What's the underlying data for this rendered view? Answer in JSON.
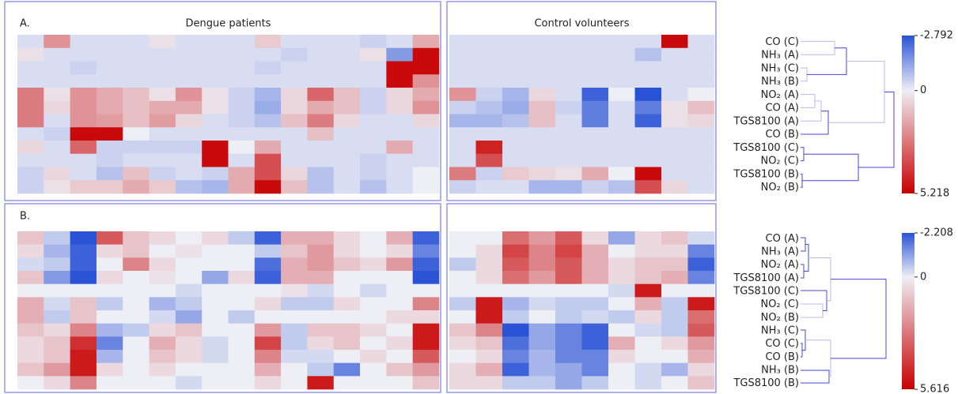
{
  "chart_data": [
    {
      "type": "heatmap",
      "label": "A.",
      "groups": [
        {
          "title": "Dengue patients",
          "values": [
            [
              -0.3,
              2,
              -0.3,
              -0.3,
              -0.3,
              0.3,
              -0.3,
              -0.3,
              -0.3,
              0.8,
              -0.3,
              -0.3,
              -0.3,
              -0.5,
              -0.3,
              1.5
            ],
            [
              0.3,
              -0.3,
              -0.3,
              -0.3,
              -0.3,
              -0.3,
              -0.3,
              -0.3,
              -0.3,
              -0.3,
              -0.5,
              -0.3,
              -0.3,
              0.3,
              -1.5,
              5
            ],
            [
              -0.3,
              -0.3,
              -0.5,
              -0.3,
              -0.3,
              -0.3,
              -0.3,
              -0.3,
              -0.3,
              -0.5,
              -0.3,
              -0.3,
              -0.3,
              -0.3,
              5,
              5
            ],
            [
              -0.3,
              -0.3,
              -0.3,
              -0.3,
              -0.3,
              -0.3,
              -0.3,
              -0.3,
              -0.3,
              -0.3,
              -0.3,
              -0.3,
              -0.3,
              -0.3,
              5,
              2
            ],
            [
              2.5,
              0.3,
              2,
              1.5,
              1,
              0.3,
              2,
              0.3,
              -0.5,
              -1,
              0.5,
              3,
              1,
              -0.5,
              0.5,
              1.5
            ],
            [
              2.5,
              0.5,
              2,
              1.5,
              1,
              1.5,
              1.5,
              0.3,
              -0.5,
              -1.2,
              0.5,
              1.5,
              1,
              -0.5,
              0.5,
              2
            ],
            [
              2.5,
              -0.3,
              2,
              1.8,
              1,
              1.8,
              0.5,
              -0.3,
              -0.5,
              -0.8,
              1,
              2.5,
              0.5,
              -0.3,
              -0.3,
              0.5
            ],
            [
              -0.3,
              -0.5,
              5,
              5,
              0,
              -0.3,
              -0.3,
              -0.3,
              -0.3,
              -0.3,
              -0.3,
              1,
              -0.3,
              -0.3,
              -0.3,
              -0.3
            ],
            [
              0.5,
              -0.3,
              3,
              -0.5,
              -0.5,
              -0.5,
              -0.5,
              5,
              0,
              1.5,
              -0.3,
              -0.3,
              -0.3,
              -0.3,
              1.5,
              -0.3
            ],
            [
              -0.3,
              -0.3,
              -0.3,
              -0.5,
              -0.3,
              -0.3,
              -0.3,
              5,
              -0.3,
              3.5,
              -0.3,
              -0.3,
              -0.3,
              -0.5,
              -0.3,
              -0.3
            ],
            [
              -0.5,
              0.5,
              -0.3,
              -0.8,
              1,
              -0.5,
              -0.3,
              -0.5,
              1.5,
              3.5,
              0.5,
              -0.8,
              -0.3,
              -0.5,
              -0.3,
              0
            ],
            [
              -0.5,
              0.3,
              0.8,
              0.8,
              1.5,
              0.8,
              -0.8,
              -1,
              1.5,
              5,
              1,
              -0.8,
              -0.3,
              -0.8,
              -0.3,
              0
            ]
          ]
        },
        {
          "title": "Control volunteers",
          "values": [
            [
              -0.3,
              -0.3,
              -0.3,
              -0.3,
              -0.3,
              -0.3,
              -0.3,
              -0.3,
              5,
              -0.3
            ],
            [
              -0.3,
              -0.3,
              -0.3,
              -0.3,
              -0.3,
              -0.3,
              -0.3,
              -0.8,
              -0.3,
              -0.3
            ],
            [
              -0.3,
              -0.3,
              -0.3,
              -0.3,
              -0.3,
              -0.3,
              -0.3,
              -0.3,
              -0.3,
              -0.3
            ],
            [
              -0.3,
              -0.3,
              -0.3,
              -0.3,
              -0.3,
              -0.3,
              -0.3,
              -0.3,
              -0.3,
              -0.3
            ],
            [
              2,
              -0.5,
              -1,
              0.5,
              -0.3,
              -2.5,
              0,
              -2.8,
              -0.3,
              0
            ],
            [
              -0.5,
              -0.8,
              -1.2,
              1,
              -0.5,
              -2,
              -0.3,
              -2,
              0.3,
              1
            ],
            [
              -1,
              -1,
              -0.8,
              1,
              -0.3,
              -2,
              -0.3,
              -2.5,
              0.3,
              0.5
            ],
            [
              -0.3,
              -0.3,
              -0.3,
              -0.3,
              -0.3,
              -0.3,
              -0.3,
              -0.3,
              -0.3,
              -0.3
            ],
            [
              -0.3,
              4.5,
              -0.3,
              -0.3,
              -0.3,
              -0.3,
              -0.3,
              -0.3,
              -0.3,
              -0.3
            ],
            [
              -0.3,
              3.5,
              -0.3,
              -0.3,
              -0.3,
              -0.3,
              -0.3,
              -0.3,
              -0.3,
              -0.3
            ],
            [
              2.5,
              -0.5,
              0.8,
              0.5,
              0.3,
              1.5,
              0,
              5,
              -0.3,
              -0.3
            ],
            [
              -0.5,
              -0.3,
              -0.3,
              -1,
              -1,
              -0.5,
              -0.8,
              3.5,
              0.5,
              -0.3
            ]
          ]
        }
      ],
      "row_labels": [
        "CO (C)",
        "NH₃ (A)",
        "NH₃ (C)",
        "NH₃ (B)",
        "NO₂ (A)",
        "CO (A)",
        "TGS8100 (A)",
        "CO (B)",
        "TGS8100 (C)",
        "NO₂ (C)",
        "TGS8100 (B)",
        "NO₂ (B)"
      ],
      "clim": [
        -2.792,
        5.218
      ],
      "cticks": [
        -2.792,
        0,
        5.218
      ]
    },
    {
      "type": "heatmap",
      "label": "B.",
      "groups": [
        {
          "values": [
            [
              1,
              -0.5,
              -2.2,
              3.5,
              1,
              0.5,
              0,
              0.5,
              -0.5,
              -2,
              1.5,
              1.5,
              0.5,
              0,
              1.5,
              -2
            ],
            [
              0.5,
              -0.8,
              -2,
              0.5,
              1,
              0,
              0.3,
              0,
              0,
              -0.5,
              1,
              2,
              0.5,
              0,
              0.5,
              -1.5
            ],
            [
              -0.3,
              -0.5,
              -2,
              0,
              2.5,
              0.5,
              0,
              0,
              0,
              -1.8,
              1.5,
              2,
              1,
              0.5,
              2,
              -2
            ],
            [
              1,
              -1.2,
              -2.2,
              0.5,
              0,
              0.3,
              0,
              -1,
              0.5,
              -2,
              1.5,
              1.5,
              0,
              0,
              0,
              -2.2
            ],
            [
              0,
              0,
              0,
              0,
              0,
              0,
              -0.3,
              0,
              0,
              0,
              0.3,
              -0.3,
              0,
              -0.3,
              0,
              0
            ],
            [
              1.5,
              -0.3,
              1,
              -0.5,
              0,
              -0.8,
              -0.5,
              0,
              0,
              0.5,
              -0.5,
              -0.5,
              0.5,
              0,
              0,
              2.5
            ],
            [
              1.5,
              -0.5,
              1,
              0,
              0,
              -0.3,
              -1,
              0,
              -0.5,
              0,
              0,
              0,
              0,
              0,
              0.5,
              0.5
            ],
            [
              1,
              0.5,
              2.5,
              -0.8,
              -0.5,
              0.5,
              1,
              0,
              0,
              2,
              -0.5,
              1,
              1,
              0.5,
              0,
              5
            ],
            [
              0.5,
              1,
              4.5,
              -1.5,
              0,
              1.5,
              0.5,
              -0.3,
              0,
              4,
              -0.5,
              0.5,
              1,
              0,
              0.5,
              5
            ],
            [
              0.5,
              1,
              5,
              -0.8,
              0,
              1,
              0.5,
              -0.3,
              0,
              2.5,
              -0.3,
              -0.3,
              0,
              0.5,
              0,
              3.5
            ],
            [
              1,
              2,
              5,
              0.5,
              0,
              0.5,
              0,
              0,
              0,
              1.5,
              0,
              -0.5,
              -1.5,
              0,
              1,
              2
            ],
            [
              0,
              0.5,
              2.5,
              0,
              0,
              0,
              -0.3,
              0,
              0,
              0.5,
              0,
              5,
              0,
              0,
              0,
              1
            ]
          ]
        },
        {
          "values": [
            [
              0,
              0,
              3,
              2,
              3.5,
              0.5,
              -1,
              0.5,
              1,
              -0.3
            ],
            [
              0,
              0.5,
              4,
              2.5,
              4,
              1.5,
              0,
              0.5,
              0.5,
              -1.5
            ],
            [
              -0.5,
              0.5,
              3.5,
              2.5,
              3.5,
              1.5,
              0.5,
              1,
              1,
              -2
            ],
            [
              0,
              0.5,
              3,
              2,
              3.5,
              1.5,
              0.5,
              1,
              1.5,
              -1.5
            ],
            [
              0,
              0,
              0,
              0,
              0,
              0,
              -0.3,
              5,
              0,
              0
            ],
            [
              -0.5,
              5,
              -0.8,
              -0.3,
              -0.5,
              -0.5,
              0,
              1.5,
              -0.5,
              5
            ],
            [
              0,
              5,
              -0.5,
              0,
              -0.5,
              -0.3,
              -0.5,
              0.5,
              -0.5,
              3
            ],
            [
              1,
              2.5,
              -2.2,
              -1,
              -1.5,
              -2,
              0,
              -0.3,
              -0.5,
              3.5
            ],
            [
              0.5,
              1,
              -1.8,
              -1,
              -1.5,
              -2,
              1.5,
              0,
              0.5,
              2
            ],
            [
              0,
              0.5,
              -1.5,
              -0.8,
              -1.5,
              -1.5,
              0.5,
              0,
              0,
              1.5
            ],
            [
              0.5,
              1.5,
              -2,
              -0.8,
              -1,
              -1.5,
              0,
              -0.3,
              -0.8,
              0.5
            ],
            [
              0.5,
              0.5,
              -0.5,
              -0.5,
              -1,
              -0.5,
              0,
              -0.3,
              0,
              1
            ]
          ]
        }
      ],
      "row_labels": [
        "CO (A)",
        "NH₃ (A)",
        "NO₂ (A)",
        "TGS8100 (A)",
        "TGS8100 (C)",
        "NO₂ (C)",
        "NO₂ (B)",
        "NH₃ (C)",
        "CO (C)",
        "CO (B)",
        "NH₃ (B)",
        "TGS8100 (B)"
      ],
      "clim": [
        -2.208,
        5.616
      ],
      "cticks": [
        -2.208,
        0,
        5.616
      ]
    }
  ]
}
